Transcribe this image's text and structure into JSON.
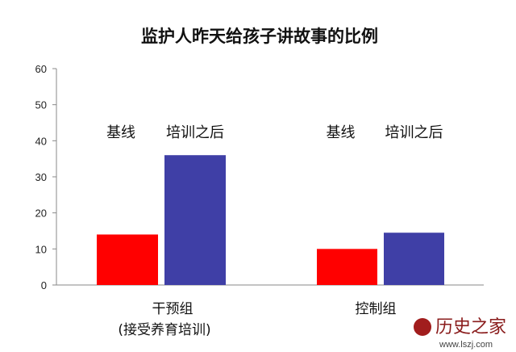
{
  "chart_data": {
    "type": "bar",
    "title": "监护人昨天给孩子讲故事的比例",
    "categories": [
      "干预组",
      "控制组"
    ],
    "category_sublabels": [
      "(接受养育培训)",
      ""
    ],
    "series": [
      {
        "name": "基线",
        "values": [
          14,
          10
        ],
        "color": "#ff0000"
      },
      {
        "name": "培训之后",
        "values": [
          36,
          14.5
        ],
        "color": "#3f3fa6"
      }
    ],
    "ylim": [
      0,
      60
    ],
    "yticks": [
      0,
      10,
      20,
      30,
      40,
      50,
      60
    ],
    "grid": false,
    "legend": "series names shown as text above each group"
  },
  "watermark": {
    "text": "历史之家",
    "url": "www.lszj.com"
  }
}
